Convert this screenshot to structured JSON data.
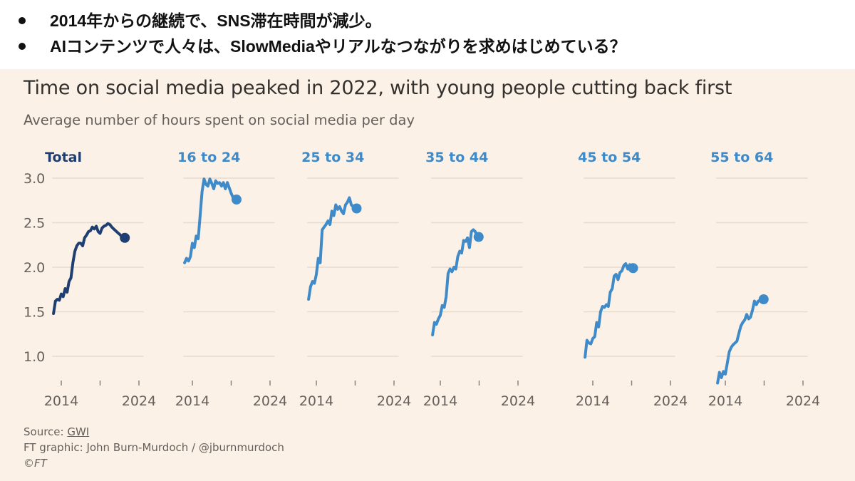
{
  "bullets": [
    "2014年からの継続で、SNS滞在時間が減少。",
    "AIコンテンツで人々は、SlowMediaやリアルなつながりを求めはじめている？"
  ],
  "colors": {
    "background": "#fcf1e6",
    "total_line": "#1f3e72",
    "age_line": "#3f8ac8",
    "grid": "#e6dbd0",
    "text": "#66605c"
  },
  "footer": {
    "source_label": "Source: ",
    "source_link": "GWI",
    "credit": "FT graphic: John Burn-Murdoch / @jburnmurdoch",
    "copyright": "©FT"
  },
  "chart_data": {
    "type": "line",
    "title": "Time on social media peaked in 2022, with young people cutting back first",
    "subtitle": "Average number of hours spent on social media per day",
    "xlabel": "",
    "ylabel": "Average number of hours spent on social media per day",
    "ylim": [
      0.75,
      3.0
    ],
    "yticks": [
      3.0,
      2.5,
      2.0,
      1.5,
      1.0
    ],
    "ytick_labels": [
      "3.0",
      "2.5",
      "2.0",
      "1.5",
      "1.0"
    ],
    "xlim": [
      2013,
      2024.5
    ],
    "xticks": [
      2014,
      2019,
      2024
    ],
    "xtick_labels": [
      "2014",
      "",
      "2024"
    ],
    "grid": true,
    "layout": "small-multiples",
    "x": [
      2013.0,
      2013.25,
      2013.5,
      2013.75,
      2014.0,
      2014.25,
      2014.5,
      2014.75,
      2015.0,
      2015.25,
      2015.5,
      2015.75,
      2016.0,
      2016.25,
      2016.5,
      2016.75,
      2017.0,
      2017.25,
      2017.5,
      2017.75,
      2018.0,
      2018.25,
      2018.5,
      2018.75,
      2019.0,
      2019.25,
      2019.5,
      2019.75,
      2020.0,
      2020.25,
      2020.5,
      2020.75,
      2021.0,
      2021.25,
      2021.5,
      2021.75,
      2022.0,
      2022.25,
      2022.5,
      2022.75,
      2023.0,
      2023.25,
      2023.5,
      2023.75,
      2024.0,
      2024.25
    ],
    "series": [
      {
        "name": "Total",
        "highlight": true,
        "values": [
          1.48,
          1.62,
          1.64,
          1.63,
          1.7,
          1.67,
          1.76,
          1.72,
          1.84,
          1.88,
          2.05,
          2.18,
          2.24,
          2.27,
          2.27,
          2.24,
          2.33,
          2.36,
          2.4,
          2.41,
          2.45,
          2.43,
          2.46,
          2.4,
          2.38,
          2.44,
          2.46,
          2.47,
          2.49,
          2.48,
          2.45,
          2.43,
          2.41,
          2.39,
          2.37,
          2.35,
          2.33,
          2.33,
          2.33,
          2.33,
          2.33,
          2.33,
          2.33,
          2.33,
          2.33,
          2.33
        ]
      },
      {
        "name": "16 to 24",
        "highlight": false,
        "values": [
          2.05,
          2.1,
          2.07,
          2.12,
          2.27,
          2.22,
          2.35,
          2.32,
          2.58,
          2.85,
          2.99,
          2.93,
          2.91,
          2.99,
          2.94,
          2.88,
          2.97,
          2.94,
          2.95,
          2.91,
          2.95,
          2.88,
          2.95,
          2.89,
          2.83,
          2.78,
          2.76,
          2.76,
          2.76,
          2.76,
          2.76,
          2.76,
          2.76,
          2.76,
          2.76,
          2.76,
          2.76,
          2.76,
          2.76,
          2.76,
          2.76,
          2.76,
          2.76,
          2.76,
          2.76,
          2.76
        ]
      },
      {
        "name": "25 to 34",
        "highlight": false,
        "values": [
          1.64,
          1.78,
          1.84,
          1.82,
          1.92,
          2.1,
          2.05,
          2.42,
          2.45,
          2.48,
          2.52,
          2.48,
          2.63,
          2.58,
          2.7,
          2.65,
          2.68,
          2.63,
          2.6,
          2.7,
          2.73,
          2.78,
          2.7,
          2.68,
          2.66,
          2.66,
          2.66,
          2.66,
          2.66,
          2.66,
          2.66,
          2.66,
          2.66,
          2.66,
          2.66,
          2.66,
          2.66,
          2.66,
          2.66,
          2.66,
          2.66,
          2.66,
          2.66,
          2.66,
          2.66,
          2.66
        ]
      },
      {
        "name": "35 to 44",
        "highlight": false,
        "values": [
          1.24,
          1.38,
          1.36,
          1.42,
          1.46,
          1.57,
          1.55,
          1.67,
          1.93,
          1.98,
          1.95,
          2.0,
          1.98,
          2.12,
          2.18,
          2.16,
          2.3,
          2.29,
          2.33,
          2.22,
          2.4,
          2.42,
          2.4,
          2.34,
          2.34,
          2.34,
          2.34,
          2.34,
          2.34,
          2.34,
          2.34,
          2.34,
          2.34,
          2.34,
          2.34,
          2.34,
          2.34,
          2.34,
          2.34,
          2.34,
          2.34,
          2.34,
          2.34,
          2.34,
          2.34,
          2.34
        ]
      },
      {
        "name": "45 to 54",
        "highlight": false,
        "values": [
          0.99,
          1.18,
          1.15,
          1.14,
          1.2,
          1.22,
          1.38,
          1.33,
          1.5,
          1.56,
          1.55,
          1.58,
          1.56,
          1.72,
          1.76,
          1.9,
          1.92,
          1.86,
          1.94,
          1.96,
          2.02,
          2.04,
          1.98,
          2.03,
          1.99,
          1.99,
          1.99,
          1.99,
          1.99,
          1.99,
          1.99,
          1.99,
          1.99,
          1.99,
          1.99,
          1.99,
          1.99,
          1.99,
          1.99,
          1.99,
          1.99,
          1.99,
          1.99,
          1.99,
          1.99,
          1.99
        ]
      },
      {
        "name": "55 to 64",
        "highlight": false,
        "values": [
          0.7,
          0.82,
          0.76,
          0.83,
          0.8,
          0.92,
          1.05,
          1.1,
          1.13,
          1.15,
          1.17,
          1.26,
          1.34,
          1.38,
          1.41,
          1.47,
          1.42,
          1.44,
          1.52,
          1.62,
          1.58,
          1.62,
          1.63,
          1.64,
          1.64,
          1.64,
          1.64,
          1.64,
          1.64,
          1.64,
          1.64,
          1.64,
          1.64,
          1.64,
          1.64,
          1.64,
          1.64,
          1.64,
          1.64,
          1.64,
          1.64,
          1.64,
          1.64,
          1.64,
          1.64,
          1.64
        ]
      }
    ],
    "end_markers": "dot on last value of each series",
    "annotations": []
  }
}
